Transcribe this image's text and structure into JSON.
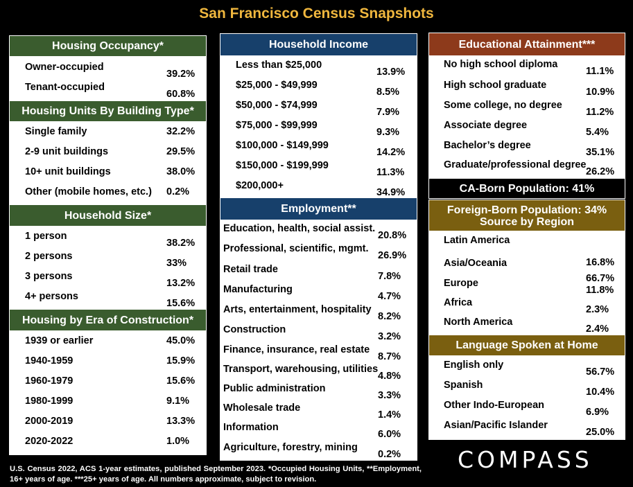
{
  "title": "San Francisco Census Snapshots",
  "housing_occupancy": {
    "header": "Housing Occupancy*",
    "rows": [
      {
        "label": "Owner-occupied",
        "value": "39.2%"
      },
      {
        "label": "Tenant-occupied",
        "value": "60.8%"
      }
    ]
  },
  "building_type": {
    "header": "Housing Units By Building Type*",
    "rows": [
      {
        "label": "Single family",
        "value": "32.2%"
      },
      {
        "label": "2-9 unit buildings",
        "value": "29.5%"
      },
      {
        "label": "10+ unit buildings",
        "value": "38.0%"
      },
      {
        "label": "Other (mobile homes, etc.)",
        "value": "0.2%"
      }
    ]
  },
  "household_size": {
    "header": "Household Size*",
    "rows": [
      {
        "label": "1 person",
        "value": "38.2%"
      },
      {
        "label": "2 persons",
        "value": "33%"
      },
      {
        "label": "3 persons",
        "value": "13.2%"
      },
      {
        "label": "4+ persons",
        "value": "15.6%"
      }
    ]
  },
  "era_construction": {
    "header": "Housing by Era of Construction*",
    "rows": [
      {
        "label": "1939 or earlier",
        "value": "45.0%"
      },
      {
        "label": "1940-1959",
        "value": "15.9%"
      },
      {
        "label": "1960-1979",
        "value": "15.6%"
      },
      {
        "label": "1980-1999",
        "value": "9.1%"
      },
      {
        "label": "2000-2019",
        "value": "13.3%"
      },
      {
        "label": "2020-2022",
        "value": "1.0%"
      }
    ]
  },
  "household_income": {
    "header": "Household Income",
    "rows": [
      {
        "label": "Less than $25,000",
        "value": "13.9%"
      },
      {
        "label": "$25,000 - $49,999",
        "value": "8.5%"
      },
      {
        "label": "$50,000 - $74,999",
        "value": "7.9%"
      },
      {
        "label": "$75,000 - $99,999",
        "value": "9.3%"
      },
      {
        "label": "$100,000 - $149,999",
        "value": "14.2%"
      },
      {
        "label": "$150,000 - $199,999",
        "value": "11.3%"
      },
      {
        "label": "$200,000+",
        "value": "34.9%"
      }
    ]
  },
  "employment": {
    "header": "Employment**",
    "rows": [
      {
        "label": "Education, health, social assist.",
        "value": "20.8%"
      },
      {
        "label": "Professional, scientific, mgmt.",
        "value": "26.9%"
      },
      {
        "label": "Retail trade",
        "value": "7.8%"
      },
      {
        "label": "Manufacturing",
        "value": "4.7%"
      },
      {
        "label": "Arts, entertainment, hospitality",
        "value": "8.2%"
      },
      {
        "label": "Construction",
        "value": "3.2%"
      },
      {
        "label": "Finance, insurance, real estate",
        "value": "8.7%"
      },
      {
        "label": "Transport, warehousing, utilities",
        "value": "4.8%"
      },
      {
        "label": "Public administration",
        "value": "3.3%"
      },
      {
        "label": "Wholesale trade",
        "value": "1.4%"
      },
      {
        "label": "Information",
        "value": "6.0%"
      },
      {
        "label": "Agriculture, forestry, mining",
        "value": "0.2%"
      }
    ]
  },
  "education": {
    "header": "Educational Attainment***",
    "rows": [
      {
        "label": "No high school diploma",
        "value": "11.1%"
      },
      {
        "label": "High school graduate",
        "value": "10.9%"
      },
      {
        "label": "Some college, no degree",
        "value": "11.2%"
      },
      {
        "label": "Associate degree",
        "value": "5.4%"
      },
      {
        "label": "Bachelor’s degree",
        "value": "35.1%"
      },
      {
        "label": "Graduate/professional degree",
        "value": "26.2%"
      }
    ]
  },
  "ca_born": {
    "header": "CA-Born Population:  41%"
  },
  "foreign_born": {
    "header_line1": "Foreign-Born Population:   34%",
    "header_line2": "Source by Region",
    "rows": [
      {
        "label": "Latin America",
        "value": "16.8%"
      },
      {
        "label": "Asia/Oceania",
        "value": "66.7%"
      },
      {
        "label": "Europe",
        "value": "11.8%"
      },
      {
        "label": "Africa",
        "value": "2.3%"
      },
      {
        "label": "North America",
        "value": "2.4%"
      }
    ]
  },
  "language": {
    "header": "Language Spoken at Home",
    "rows": [
      {
        "label": "English only",
        "value": "56.7%"
      },
      {
        "label": "Spanish",
        "value": "10.4%"
      },
      {
        "label": "Other Indo-European",
        "value": "6.9%"
      },
      {
        "label": "Asian/Pacific Islander",
        "value": "25.0%"
      }
    ]
  },
  "footer": "U.S. Census 2022, ACS 1-year estimates, published September 2023. *Occupied Housing Units, **Employment, 16+ years of age. ***25+ years of age. All numbers approximate, subject to revision.",
  "logo": "COMPASS"
}
